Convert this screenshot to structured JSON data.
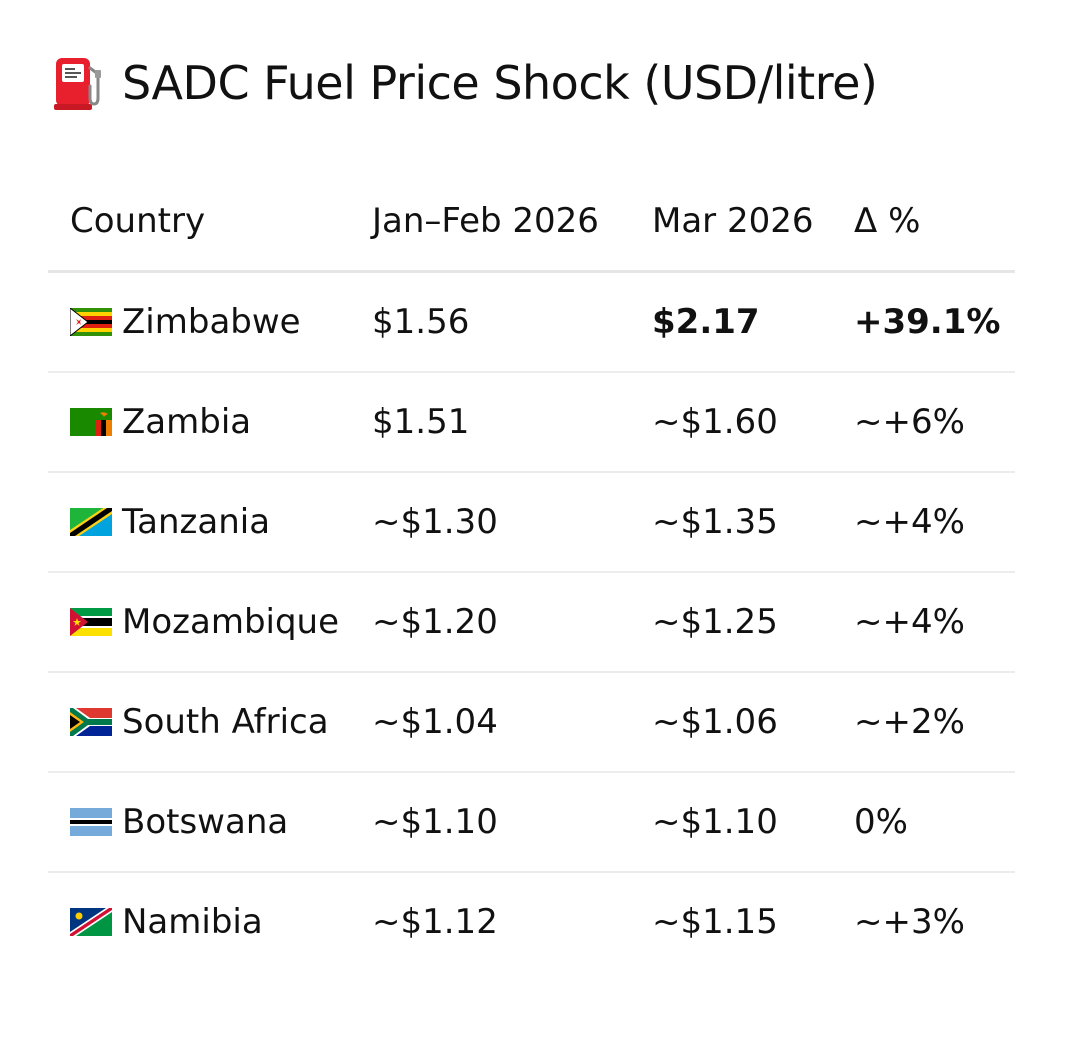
{
  "title": {
    "icon": "fuel-pump-icon",
    "text": "SADC Fuel Price Shock (USD/litre)"
  },
  "table": {
    "headers": {
      "country": "Country",
      "jan_feb": "Jan–Feb 2026",
      "mar": "Mar 2026",
      "delta": "Δ %"
    },
    "rows": [
      {
        "flag": "zimbabwe-flag-icon",
        "country": "Zimbabwe",
        "jan_feb": "$1.56",
        "mar": "$2.17",
        "delta": "+39.1%",
        "highlight": true
      },
      {
        "flag": "zambia-flag-icon",
        "country": "Zambia",
        "jan_feb": "$1.51",
        "mar": "~$1.60",
        "delta": "~+6%"
      },
      {
        "flag": "tanzania-flag-icon",
        "country": "Tanzania",
        "jan_feb": "~$1.30",
        "mar": "~$1.35",
        "delta": "~+4%"
      },
      {
        "flag": "mozambique-flag-icon",
        "country": "Mozambique",
        "jan_feb": "~$1.20",
        "mar": "~$1.25",
        "delta": "~+4%"
      },
      {
        "flag": "south-africa-flag-icon",
        "country": "South Africa",
        "jan_feb": "~$1.04",
        "mar": "~$1.06",
        "delta": "~+2%"
      },
      {
        "flag": "botswana-flag-icon",
        "country": "Botswana",
        "jan_feb": "~$1.10",
        "mar": "~$1.10",
        "delta": "0%"
      },
      {
        "flag": "namibia-flag-icon",
        "country": "Namibia",
        "jan_feb": "~$1.12",
        "mar": "~$1.15",
        "delta": "~+3%"
      }
    ]
  }
}
